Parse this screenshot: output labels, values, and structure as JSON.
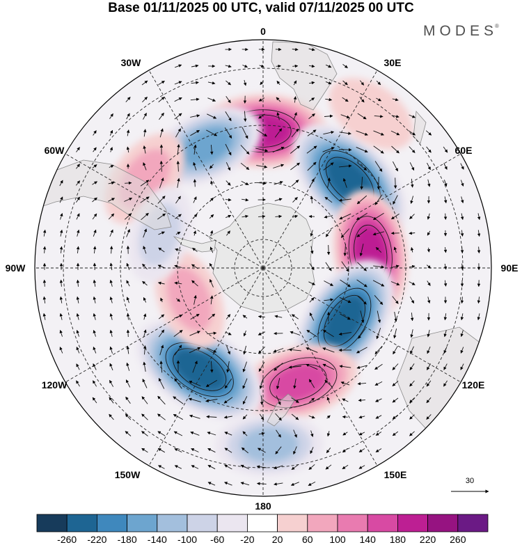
{
  "title": "Base 01/11/2025 00 UTC, valid 07/11/2025 00 UTC",
  "brand": "MODES",
  "brand_mark": "®",
  "longitude_labels": [
    {
      "id": "lon-0",
      "text": "0"
    },
    {
      "id": "lon-30e",
      "text": "30E"
    },
    {
      "id": "lon-60e",
      "text": "60E"
    },
    {
      "id": "lon-90e",
      "text": "90E"
    },
    {
      "id": "lon-120e",
      "text": "120E"
    },
    {
      "id": "lon-150e",
      "text": "150E"
    },
    {
      "id": "lon-180",
      "text": "180"
    },
    {
      "id": "lon-150w",
      "text": "150W"
    },
    {
      "id": "lon-120w",
      "text": "120W"
    },
    {
      "id": "lon-90w",
      "text": "90W"
    },
    {
      "id": "lon-60w",
      "text": "60W"
    },
    {
      "id": "lon-30w",
      "text": "30W"
    }
  ],
  "vector_scale": {
    "label": "30",
    "value": 30
  },
  "colorbar": {
    "colors": [
      "#173b5b",
      "#1e6593",
      "#3f88bd",
      "#6da5cf",
      "#a3bfdd",
      "#cdd3e7",
      "#ebe6f0",
      "#ffffff",
      "#f6d0d0",
      "#f2a7bd",
      "#e97bb0",
      "#d84aa3",
      "#bd1f93",
      "#961381",
      "#6b1a85"
    ],
    "ticks": [
      "-260",
      "-220",
      "-180",
      "-140",
      "-100",
      "-60",
      "-20",
      "20",
      "60",
      "100",
      "140",
      "180",
      "220",
      "260"
    ]
  },
  "chart_data": {
    "type": "heatmap",
    "projection": "polar stereographic (south pole)",
    "title": "Base 01/11/2025 00 UTC, valid 07/11/2025 00 UTC",
    "field": "anomaly (shaded) with wind vectors",
    "levels": [
      -260,
      -220,
      -180,
      -140,
      -100,
      -60,
      -20,
      20,
      60,
      100,
      140,
      180,
      220,
      260
    ],
    "vector_reference": 30,
    "anomaly_centers": [
      {
        "lon": 0,
        "lat": -42,
        "value": 200,
        "sign": "positive"
      },
      {
        "lon": 45,
        "lat": -47,
        "value": -260,
        "sign": "negative"
      },
      {
        "lon": 82,
        "lat": -52,
        "value": 200,
        "sign": "positive"
      },
      {
        "lon": 123,
        "lat": -56,
        "value": -240,
        "sign": "negative"
      },
      {
        "lon": 163,
        "lat": -48,
        "value": 180,
        "sign": "positive"
      },
      {
        "lon": -148,
        "lat": -48,
        "value": -260,
        "sign": "negative"
      },
      {
        "lon": -25,
        "lat": -43,
        "value": -160,
        "sign": "negative"
      },
      {
        "lon": -113,
        "lat": -62,
        "value": 100,
        "sign": "positive"
      },
      {
        "lon": -53,
        "lat": -38,
        "value": 100,
        "sign": "positive"
      },
      {
        "lon": 178,
        "lat": -28,
        "value": -120,
        "sign": "negative"
      },
      {
        "lon": 35,
        "lat": -24,
        "value": 60,
        "sign": "positive"
      },
      {
        "lon": -72,
        "lat": -52,
        "value": -80,
        "sign": "negative"
      }
    ]
  }
}
